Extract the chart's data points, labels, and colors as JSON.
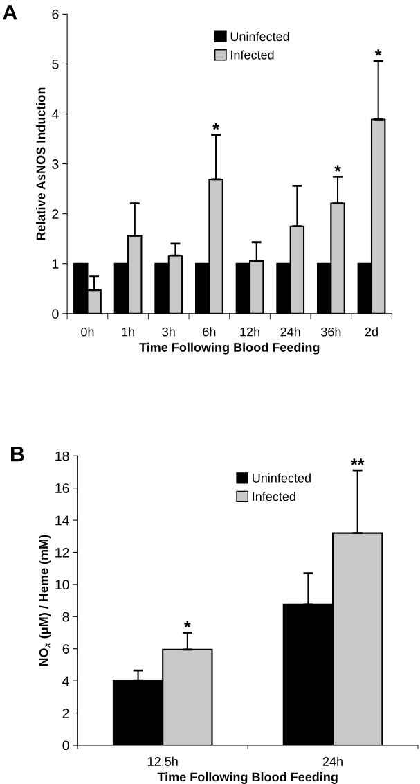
{
  "chart_data": [
    {
      "type": "bar",
      "annotations": [
        "A",
        {
          "text": "*",
          "x": "6h",
          "y": 3.58
        },
        {
          "text": "*",
          "x": "36h",
          "y": 2.74
        },
        {
          "text": "*",
          "x": "2d",
          "y": 5.06
        }
      ],
      "xlabel": "Time Following Blood Feeding",
      "ylabel": "Relative AsNOS Induction",
      "categories": [
        "0h",
        "1h",
        "3h",
        "6h",
        "12h",
        "24h",
        "36h",
        "2d"
      ],
      "series": [
        {
          "name": "Uninfected",
          "color": "#000000",
          "values": [
            1,
            1,
            1,
            1,
            1,
            1,
            1,
            1
          ]
        },
        {
          "name": "Infected",
          "color": "#c8c8c8",
          "values": [
            0.47,
            1.56,
            1.16,
            2.69,
            1.05,
            1.75,
            2.21,
            3.89
          ],
          "errors": [
            [
              0.47,
              0.75
            ],
            [
              1.56,
              2.21
            ],
            [
              1.16,
              1.4
            ],
            [
              2.69,
              3.58
            ],
            [
              1.05,
              1.43
            ],
            [
              1.75,
              2.56
            ],
            [
              2.21,
              2.74
            ],
            [
              3.89,
              5.06
            ]
          ]
        }
      ],
      "ylim": [
        0,
        6
      ],
      "yticks": [
        0,
        1,
        2,
        3,
        4,
        5,
        6
      ],
      "legend": "top",
      "grid": false
    },
    {
      "type": "bar",
      "annotations": [
        "B",
        "*",
        "**"
      ],
      "xlabel": "Time Following Blood Feeding",
      "ylabel": "NO$_{x}$ (μM) / Heme (mM)",
      "categories": [
        "12.5h",
        "24h"
      ],
      "series": [
        {
          "name": "Uninfected",
          "color": "#000000",
          "values": [
            4.0,
            8.75
          ],
          "errors": [
            [
              4.0,
              4.65
            ],
            [
              8.75,
              10.7
            ]
          ]
        },
        {
          "name": "Infected",
          "color": "#c8c8c8",
          "values": [
            5.95,
            13.2
          ],
          "errors": [
            [
              5.95,
              7.0
            ],
            [
              13.2,
              17.1
            ]
          ]
        }
      ],
      "ylim": [
        0,
        18
      ],
      "yticks": [
        0,
        2,
        4,
        6,
        8,
        10,
        12,
        14,
        16,
        18
      ],
      "legend": "top",
      "grid": false
    }
  ]
}
